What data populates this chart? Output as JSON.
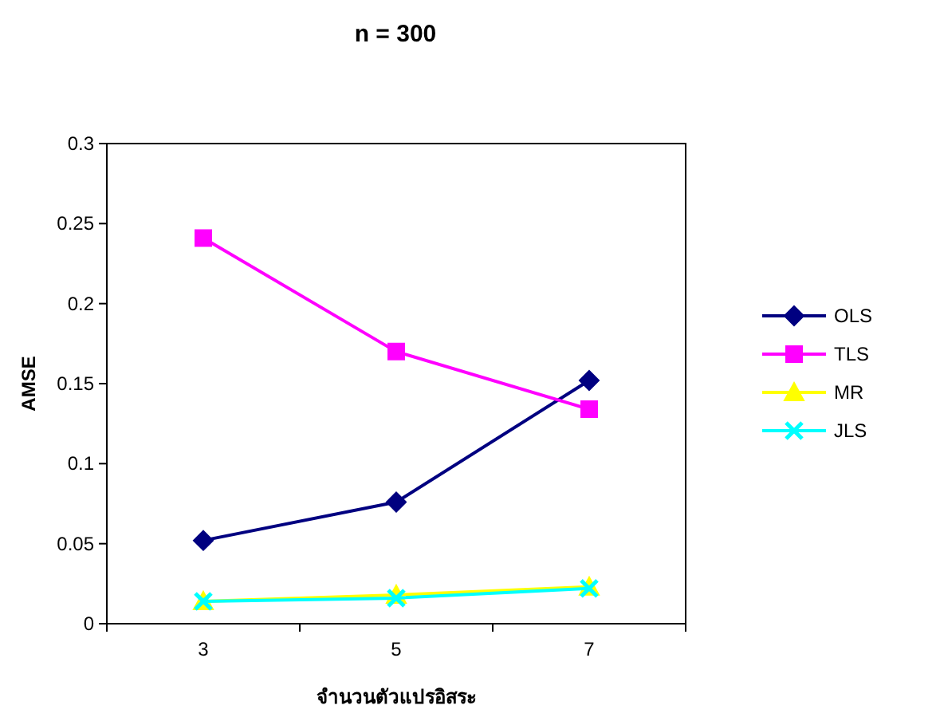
{
  "chart_data": {
    "type": "line",
    "title": "n = 300",
    "xlabel": "จำนวนตัวแปรอิสระ",
    "ylabel": "AMSE",
    "categories": [
      "3",
      "5",
      "7"
    ],
    "series": [
      {
        "name": "OLS",
        "color": "#000080",
        "marker": "diamond",
        "values": [
          0.052,
          0.076,
          0.152
        ]
      },
      {
        "name": "TLS",
        "color": "#ff00ff",
        "marker": "square",
        "values": [
          0.241,
          0.17,
          0.134
        ]
      },
      {
        "name": "MR",
        "color": "#ffff00",
        "marker": "triangle",
        "values": [
          0.014,
          0.018,
          0.023
        ]
      },
      {
        "name": "JLS",
        "color": "#00ffff",
        "marker": "cross",
        "values": [
          0.014,
          0.016,
          0.022
        ]
      }
    ],
    "ylim": [
      0,
      0.3
    ],
    "yticks": [
      0,
      0.05,
      0.1,
      0.15,
      0.2,
      0.25,
      0.3
    ],
    "grid": false,
    "legend": "right"
  }
}
